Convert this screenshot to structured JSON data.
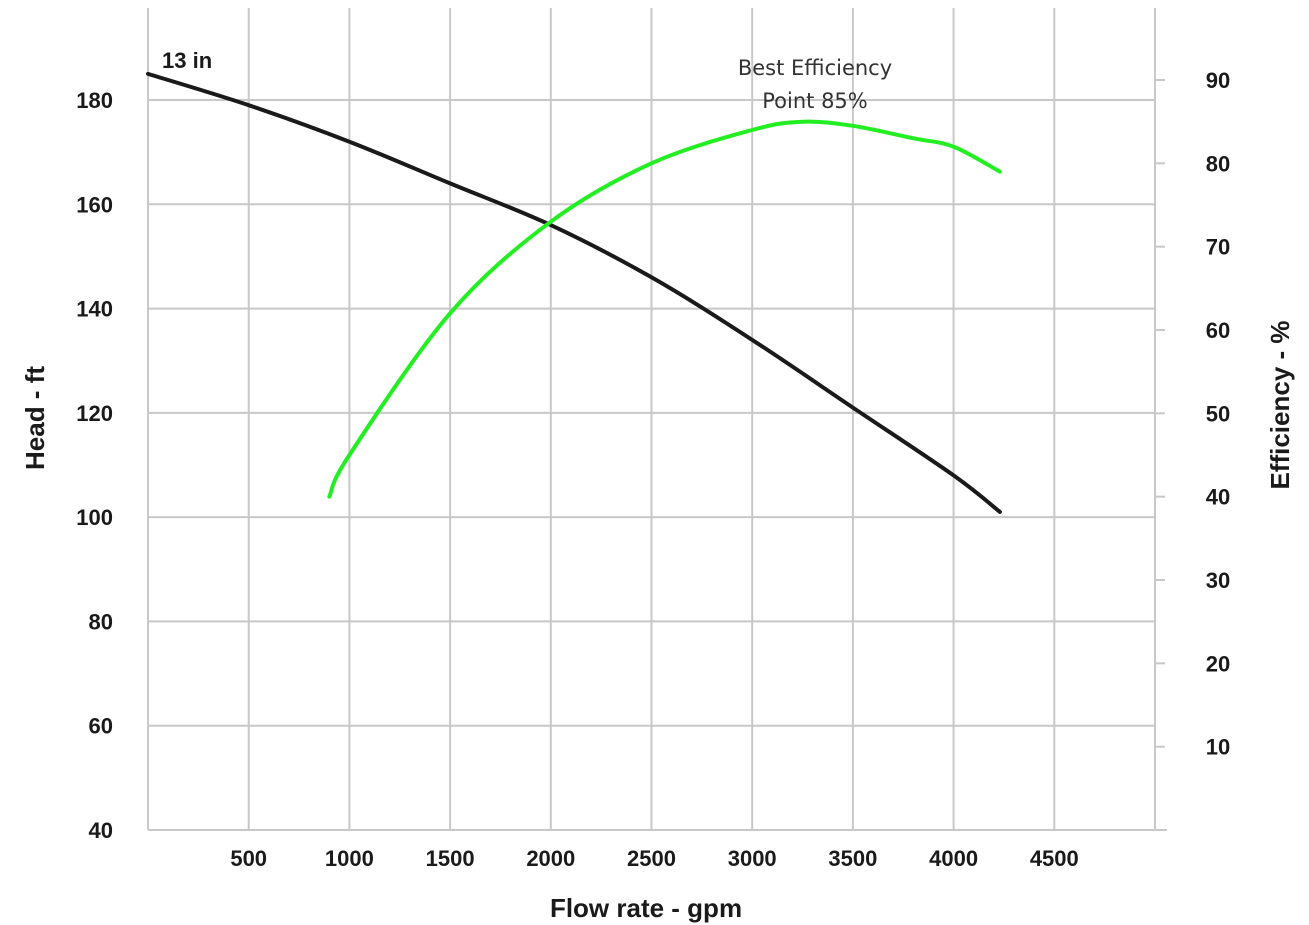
{
  "chart_data": {
    "type": "line",
    "xlabel": "Flow rate - gpm",
    "ylabel": "Head - ft",
    "y2label": "Efficiency - %",
    "xlim": [
      0,
      5000
    ],
    "ylim": [
      40,
      190
    ],
    "y2lim": [
      0,
      90
    ],
    "x_ticks": [
      500,
      1000,
      1500,
      2000,
      2500,
      3000,
      3500,
      4000,
      4500
    ],
    "y_ticks": [
      40,
      60,
      80,
      100,
      120,
      140,
      160,
      180
    ],
    "y2_ticks": [
      10,
      20,
      30,
      40,
      50,
      60,
      70,
      80,
      90
    ],
    "grid": true,
    "curve_label": "13 in",
    "annotation": {
      "line1": "Best Efficiency",
      "line2": "Point 85%",
      "x": 3250,
      "y2": 85
    },
    "series": [
      {
        "axis": "left",
        "color": "#1a1a1a",
        "x": [
          0,
          500,
          1000,
          1500,
          2000,
          2500,
          3000,
          3500,
          4000,
          4230
        ],
        "values": [
          185,
          179,
          172,
          164,
          156,
          146,
          134,
          121,
          108,
          101
        ]
      },
      {
        "axis": "right",
        "color": "#22ee22",
        "x": [
          900,
          1000,
          1500,
          2000,
          2500,
          3000,
          3250,
          3500,
          3800,
          4000,
          4230
        ],
        "values": [
          40,
          45,
          62,
          73,
          80,
          84,
          85,
          84.5,
          83,
          82,
          79
        ]
      }
    ]
  }
}
